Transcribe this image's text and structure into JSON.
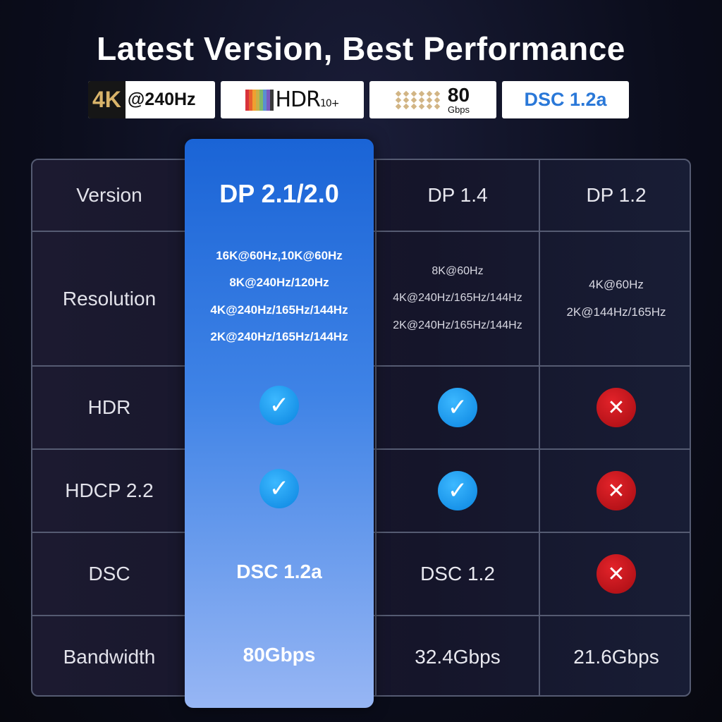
{
  "title": "Latest Version, Best Performance",
  "badges": {
    "k4": "4K",
    "hz": "@240Hz",
    "hdr": "HDR",
    "hdr_suffix": "10+",
    "gbps_num": "80",
    "gbps_unit": "Gbps",
    "dsc": "DSC 1.2a"
  },
  "table": {
    "headers": [
      "Version",
      "DP 2.1/2.0",
      "DP 1.4",
      "DP 1.2"
    ],
    "rows": [
      {
        "label": "Resolution",
        "dp21": [
          "16K@60Hz,10K@60Hz",
          "8K@240Hz/120Hz",
          "4K@240Hz/165Hz/144Hz",
          "2K@240Hz/165Hz/144Hz"
        ],
        "dp14": [
          "8K@60Hz",
          "4K@240Hz/165Hz/144Hz",
          "2K@240Hz/165Hz/144Hz"
        ],
        "dp12": [
          "4K@60Hz",
          "2K@144Hz/165Hz"
        ]
      },
      {
        "label": "HDR",
        "dp21": "check-icon",
        "dp14": "check-icon",
        "dp12": "x-icon"
      },
      {
        "label": "HDCP 2.2",
        "dp21": "check-icon",
        "dp14": "check-icon",
        "dp12": "x-icon"
      },
      {
        "label": "DSC",
        "dp21": "DSC 1.2a",
        "dp14": "DSC 1.2",
        "dp12": "x-icon"
      },
      {
        "label": "Bandwidth",
        "dp21": "80Gbps",
        "dp14": "32.4Gbps",
        "dp12": "21.6Gbps"
      }
    ]
  },
  "colors": {
    "highlight_top": "#1a64d6",
    "highlight_bottom": "#97b6f4",
    "check": "#0a84e0",
    "cross": "#c4151c",
    "gold": "#d9b46a"
  }
}
